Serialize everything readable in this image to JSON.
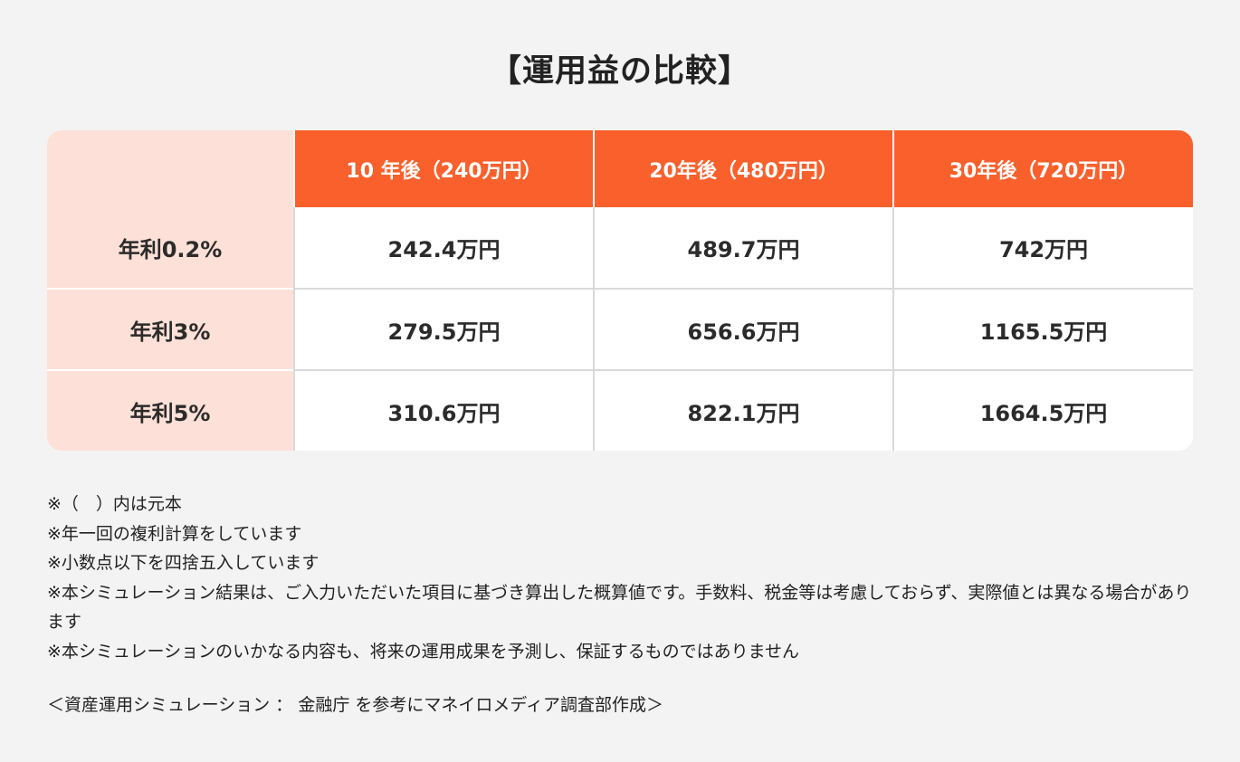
{
  "title": "【運用益の比較】",
  "table": {
    "columns": [
      "10 年後（240万円）",
      "20年後（480万円）",
      "30年後（720万円）"
    ],
    "rows": [
      {
        "label": "年利0.2%",
        "values": [
          "242.4万円",
          "489.7万円",
          "742万円"
        ]
      },
      {
        "label": "年利3%",
        "values": [
          "279.5万円",
          "656.6万円",
          "1165.5万円"
        ]
      },
      {
        "label": "年利5%",
        "values": [
          "310.6万円",
          "822.1万円",
          "1664.5万円"
        ]
      }
    ]
  },
  "notes": [
    "※（　）内は元本",
    "※年一回の複利計算をしています",
    "※小数点以下を四捨五入しています",
    "※本シミュレーション結果は、ご入力いただいた項目に基づき算出した概算値です。手数料、税金等は考慮しておらず、実際値とは異なる場合があります",
    "※本シミュレーションのいかなる内容も、将来の運用成果を予測し、保証するものではありません"
  ],
  "source": "＜資産運用シミュレーション ： 金融庁 を参考にマネイロメディア調査部作成＞"
}
